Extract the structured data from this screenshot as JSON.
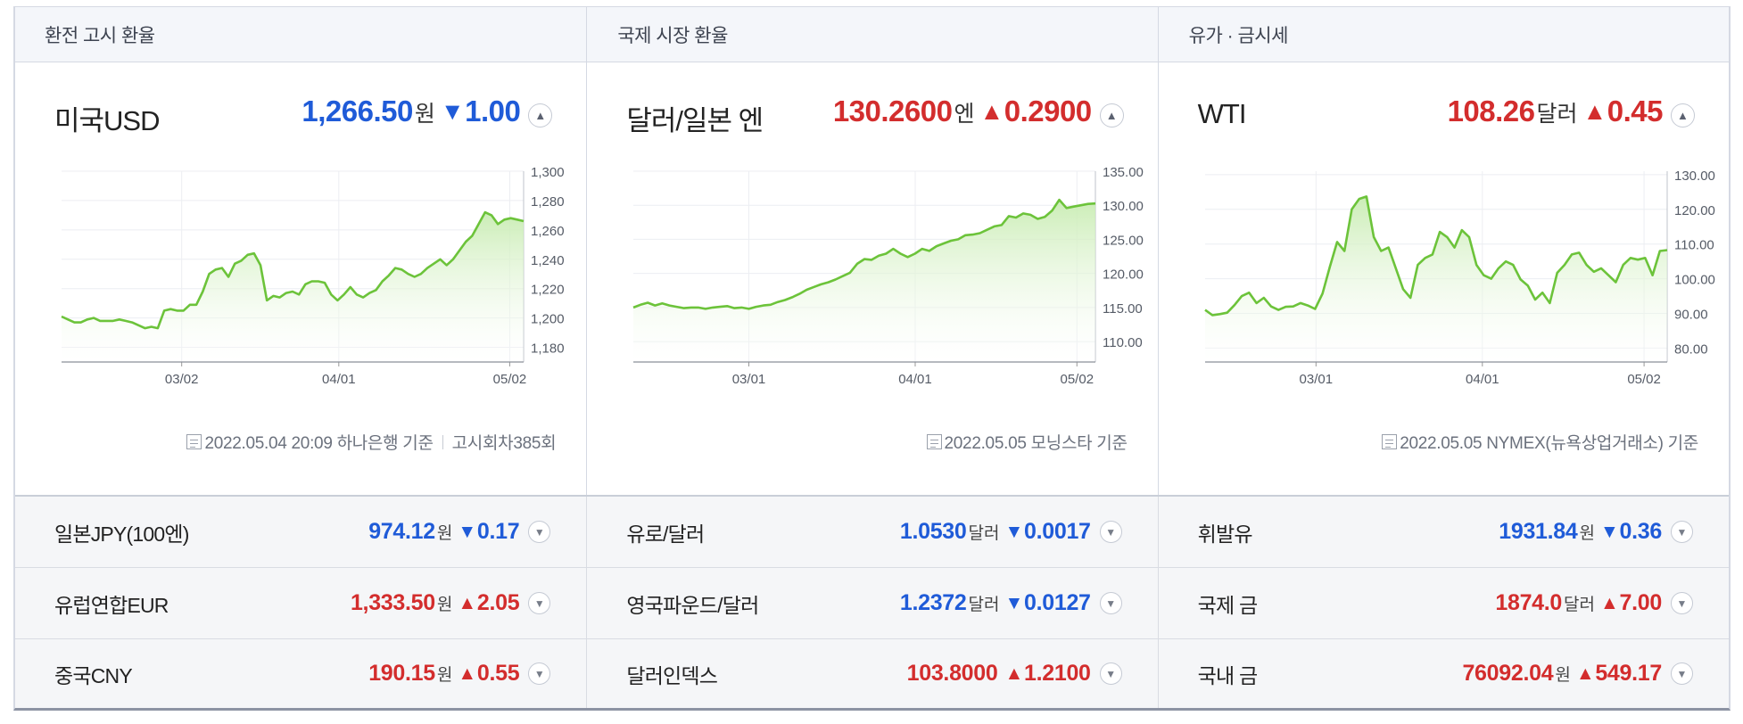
{
  "colors": {
    "up": "#d32d2d",
    "down": "#1f5bd8",
    "line": "#6cc33a",
    "fill": "#c8ecb2"
  },
  "headers": [
    "환전 고시 환율",
    "국제 시장 환율",
    "유가 · 금시세"
  ],
  "panels": [
    {
      "name": "미국USD",
      "value": "1,266.50",
      "unit": "원",
      "direction": "down",
      "arrow": "▼",
      "change": "1.00",
      "toggle_icon": "▲",
      "note_date": "2022.05.04 20:09 하나은행 기준",
      "note_extra": "고시회차385회"
    },
    {
      "name": "달러/일본 엔",
      "value": "130.2600",
      "unit": "엔",
      "direction": "up",
      "arrow": "▲",
      "change": "0.2900",
      "toggle_icon": "▲",
      "note_date": "2022.05.05 모닝스타 기준",
      "note_extra": ""
    },
    {
      "name": "WTI",
      "value": "108.26",
      "unit": "달러",
      "direction": "up",
      "arrow": "▲",
      "change": "0.45",
      "toggle_icon": "▲",
      "note_date": "2022.05.05 NYMEX(뉴욕상업거래소) 기준",
      "note_extra": ""
    }
  ],
  "rows": [
    [
      {
        "name": "일본JPY(100엔)",
        "value": "974.12",
        "unit": "원",
        "direction": "down",
        "arrow": "▼",
        "change": "0.17"
      },
      {
        "name": "유로/달러",
        "value": "1.0530",
        "unit": "달러",
        "direction": "down",
        "arrow": "▼",
        "change": "0.0017"
      },
      {
        "name": "휘발유",
        "value": "1931.84",
        "unit": "원",
        "direction": "down",
        "arrow": "▼",
        "change": "0.36"
      }
    ],
    [
      {
        "name": "유럽연합EUR",
        "value": "1,333.50",
        "unit": "원",
        "direction": "up",
        "arrow": "▲",
        "change": "2.05"
      },
      {
        "name": "영국파운드/달러",
        "value": "1.2372",
        "unit": "달러",
        "direction": "down",
        "arrow": "▼",
        "change": "0.0127"
      },
      {
        "name": "국제 금",
        "value": "1874.0",
        "unit": "달러",
        "direction": "up",
        "arrow": "▲",
        "change": "7.00"
      }
    ],
    [
      {
        "name": "중국CNY",
        "value": "190.15",
        "unit": "원",
        "direction": "up",
        "arrow": "▲",
        "change": "0.55"
      },
      {
        "name": "달러인덱스",
        "value": "103.8000",
        "unit": "",
        "direction": "up",
        "arrow": "▲",
        "change": "1.2100"
      },
      {
        "name": "국내 금",
        "value": "76092.04",
        "unit": "원",
        "direction": "up",
        "arrow": "▲",
        "change": "549.17"
      }
    ]
  ],
  "row_toggle_icon": "▼",
  "chart_data": [
    {
      "type": "area",
      "x_ticks": [
        "03/02",
        "04/01",
        "05/02"
      ],
      "y_ticks": [
        "1,300",
        "1,280",
        "1,260",
        "1,240",
        "1,220",
        "1,200",
        "1,180"
      ],
      "ylim": [
        1170,
        1300
      ],
      "x_tick_positions": [
        0.26,
        0.6,
        0.97
      ],
      "values": [
        1201,
        1199,
        1197,
        1197,
        1199,
        1200,
        1198,
        1198,
        1198,
        1199,
        1198,
        1197,
        1195,
        1193,
        1194,
        1193,
        1205,
        1206,
        1205,
        1205,
        1209,
        1209,
        1218,
        1230,
        1233,
        1234,
        1228,
        1237,
        1239,
        1243,
        1244,
        1236,
        1212,
        1215,
        1214,
        1217,
        1218,
        1216,
        1223,
        1225,
        1225,
        1224,
        1216,
        1212,
        1216,
        1221,
        1216,
        1214,
        1217,
        1219,
        1225,
        1229,
        1234,
        1233,
        1230,
        1228,
        1230,
        1234,
        1237,
        1240,
        1236,
        1240,
        1246,
        1252,
        1256,
        1264,
        1272,
        1270,
        1264,
        1267,
        1268,
        1267,
        1266
      ]
    },
    {
      "type": "area",
      "x_ticks": [
        "03/01",
        "04/01",
        "05/02"
      ],
      "y_ticks": [
        "135.00",
        "130.00",
        "125.00",
        "120.00",
        "115.00",
        "110.00"
      ],
      "ylim": [
        107,
        135
      ],
      "x_tick_positions": [
        0.25,
        0.61,
        0.96
      ],
      "values": [
        115.0,
        115.4,
        115.7,
        115.3,
        115.6,
        115.3,
        115.1,
        114.9,
        115.0,
        115.0,
        114.8,
        115.0,
        115.1,
        115.2,
        114.9,
        115.0,
        114.8,
        115.1,
        115.3,
        115.4,
        115.8,
        116.1,
        116.5,
        117.0,
        117.6,
        118.0,
        118.4,
        118.7,
        119.1,
        119.6,
        120.1,
        121.4,
        122.1,
        122.0,
        122.6,
        122.9,
        123.6,
        122.9,
        122.4,
        122.9,
        123.6,
        123.3,
        124.0,
        124.4,
        124.8,
        125.0,
        125.6,
        125.7,
        125.9,
        126.4,
        126.9,
        127.1,
        128.4,
        128.2,
        128.8,
        128.6,
        128.0,
        128.3,
        129.2,
        130.8,
        129.6,
        129.8,
        130.0,
        130.2,
        130.26
      ]
    },
    {
      "type": "area",
      "x_ticks": [
        "03/01",
        "04/01",
        "05/02"
      ],
      "y_ticks": [
        "130.00",
        "120.00",
        "110.00",
        "100.00",
        "90.00",
        "80.00"
      ],
      "ylim": [
        76,
        131
      ],
      "x_tick_positions": [
        0.24,
        0.6,
        0.95
      ],
      "values": [
        91,
        89.5,
        89.8,
        90.2,
        92.4,
        95.0,
        96.0,
        93.0,
        94.5,
        92.0,
        91.0,
        91.9,
        92.0,
        93.0,
        92.3,
        91.3,
        95.7,
        103.4,
        110.6,
        108.0,
        120.0,
        123.0,
        123.7,
        112.0,
        108.0,
        109.0,
        103.0,
        97.0,
        94.5,
        104.0,
        106.0,
        107.0,
        113.5,
        112.0,
        109.0,
        114.0,
        112.0,
        104.0,
        101.0,
        100.0,
        103.0,
        105.0,
        104.0,
        99.8,
        98.0,
        94.0,
        96.0,
        93.0,
        101.7,
        104.0,
        107.0,
        107.5,
        104.0,
        102.0,
        103.0,
        101.0,
        99.0,
        104.0,
        106.0,
        105.5,
        106.0,
        101.0,
        108.0,
        108.26
      ]
    }
  ]
}
